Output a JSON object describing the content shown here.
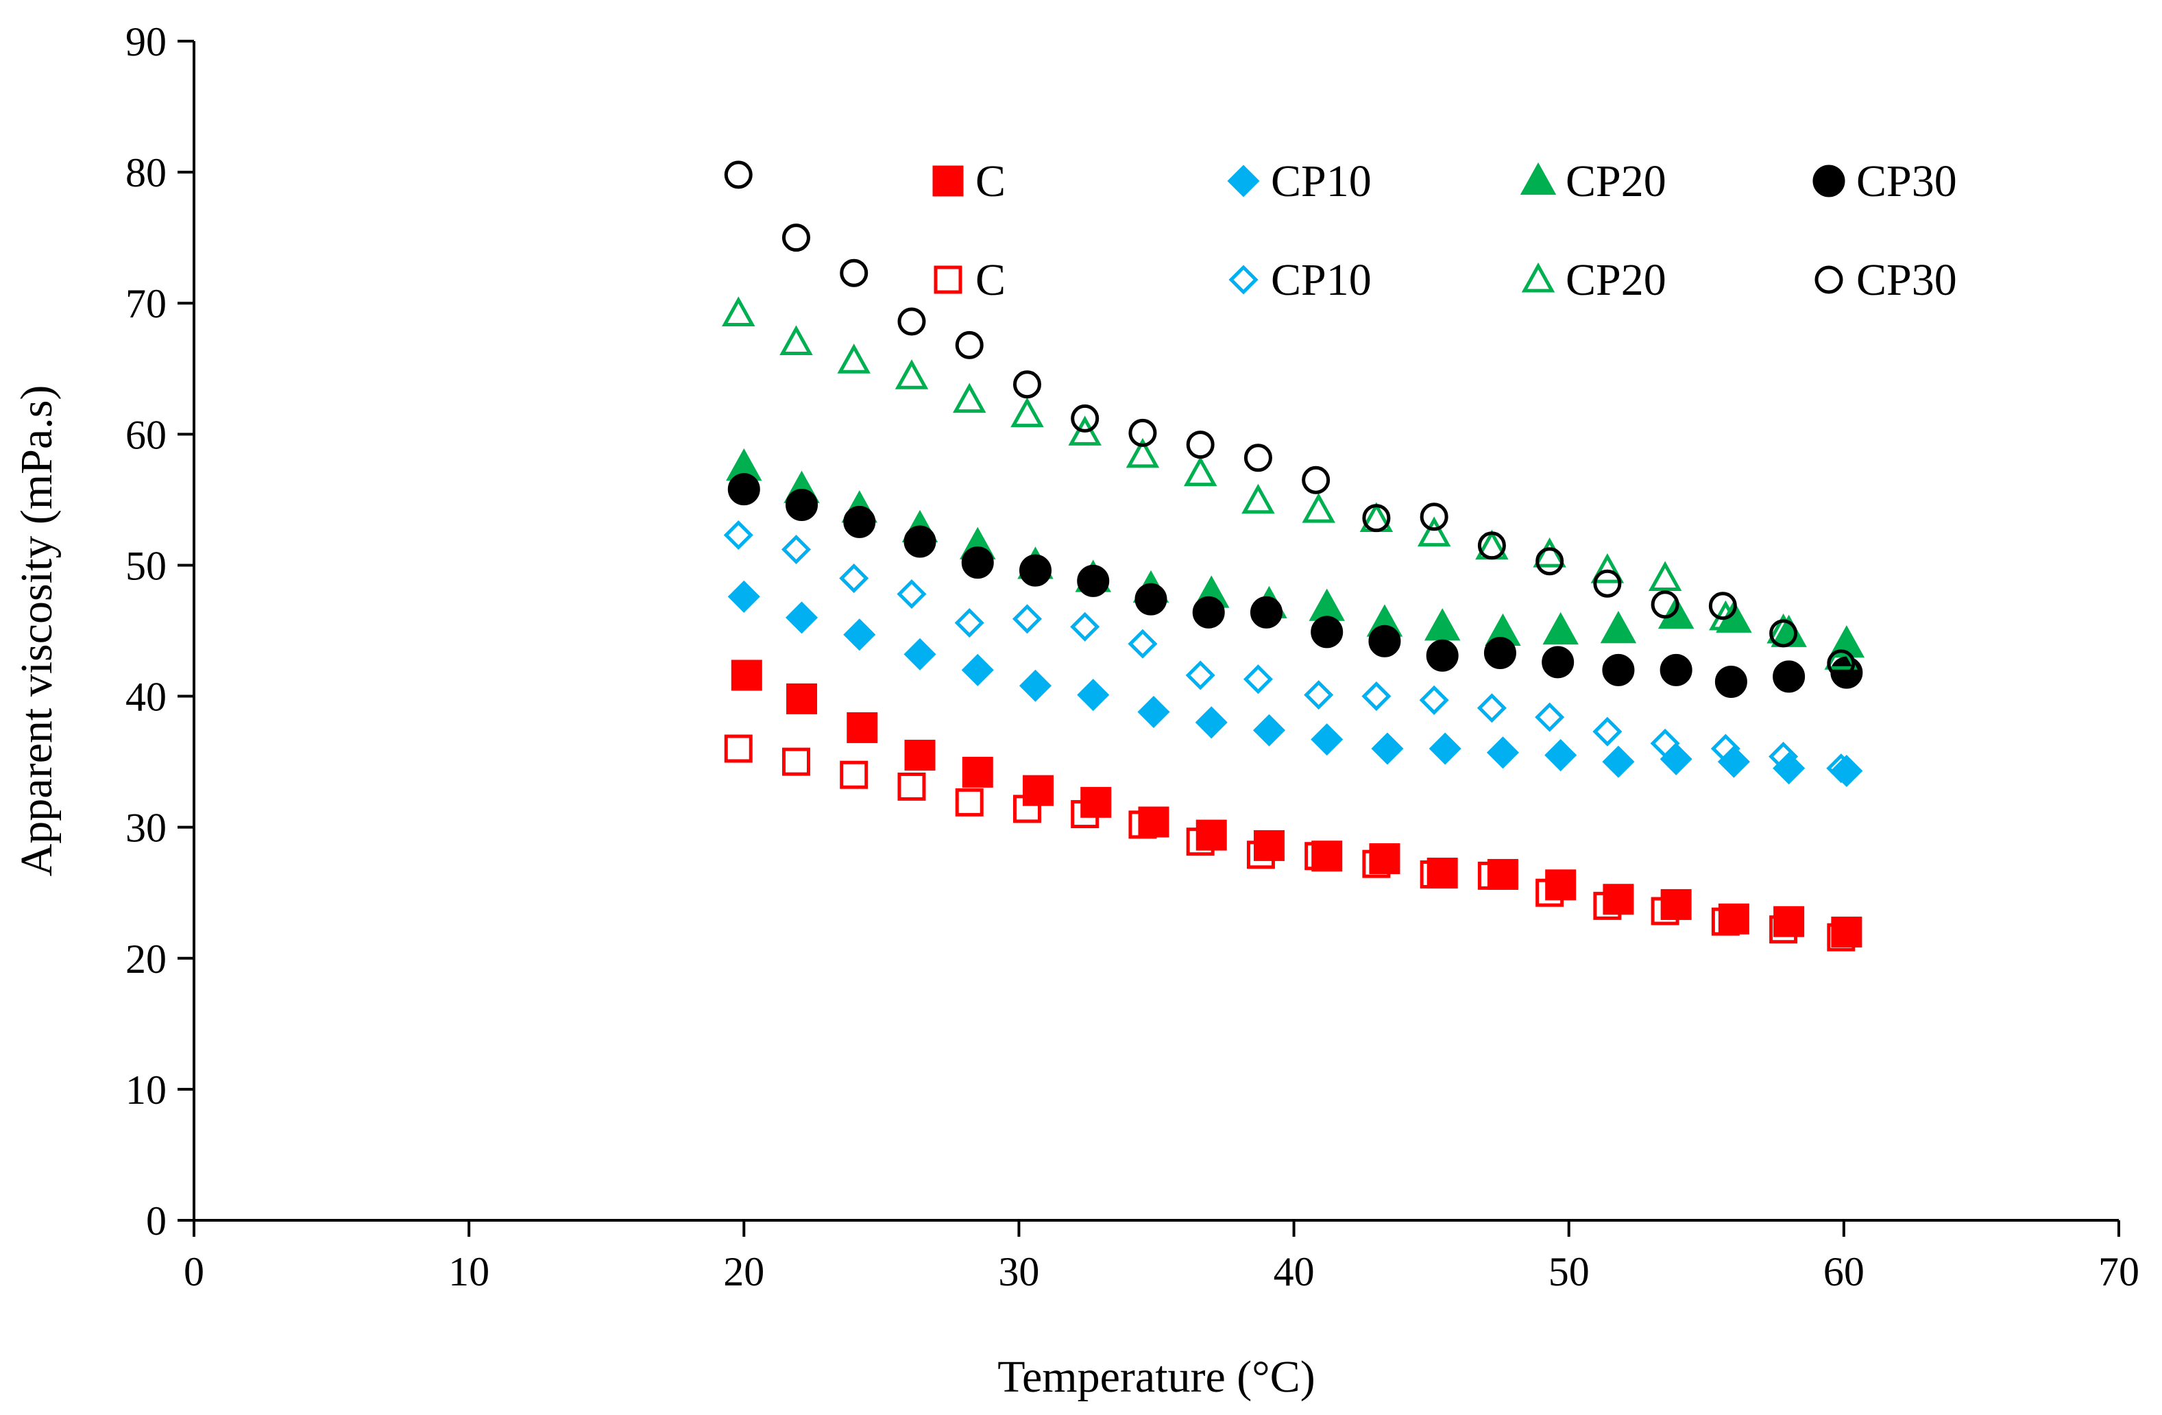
{
  "chart_data": {
    "type": "scatter",
    "xlabel": "Temperature (°C)",
    "ylabel": "Apparent viscosity  (mPa.s)",
    "xlim": [
      0,
      70
    ],
    "ylim": [
      0,
      90
    ],
    "xticks": [
      0,
      10,
      20,
      30,
      40,
      50,
      60,
      70
    ],
    "yticks": [
      0,
      10,
      20,
      30,
      40,
      50,
      60,
      70,
      80,
      90
    ],
    "grid": false,
    "legend": "top-right inside, two rows",
    "colors": {
      "C": "#ff0000",
      "CP10": "#00b0f0",
      "CP20": "#00b050",
      "CP30": "#000000"
    },
    "series": [
      {
        "name": "C",
        "marker": "square",
        "filled": true,
        "color": "#ff0000",
        "x": [
          20.1,
          22.1,
          24.3,
          26.4,
          28.5,
          30.7,
          32.8,
          34.9,
          37.0,
          39.1,
          41.2,
          43.3,
          45.4,
          47.6,
          49.7,
          51.8,
          53.9,
          56.0,
          58.0,
          60.1
        ],
        "y": [
          41.6,
          39.8,
          37.6,
          35.5,
          34.2,
          32.8,
          31.9,
          30.4,
          29.4,
          28.6,
          27.8,
          27.6,
          26.5,
          26.4,
          25.6,
          24.5,
          24.1,
          23.0,
          22.8,
          22.0
        ]
      },
      {
        "name": "CP10",
        "marker": "diamond",
        "filled": true,
        "color": "#00b0f0",
        "x": [
          20.0,
          22.1,
          24.2,
          26.4,
          28.5,
          30.6,
          32.7,
          34.9,
          37.0,
          39.1,
          41.2,
          43.4,
          45.5,
          47.6,
          49.7,
          51.8,
          53.9,
          56.0,
          58.0,
          60.1
        ],
        "y": [
          47.6,
          46.0,
          44.7,
          43.2,
          42.0,
          40.8,
          40.1,
          38.8,
          38.0,
          37.4,
          36.7,
          36.0,
          36.0,
          35.7,
          35.5,
          35.0,
          35.2,
          35.0,
          34.5,
          34.3
        ]
      },
      {
        "name": "CP20",
        "marker": "triangle",
        "filled": true,
        "color": "#00b050",
        "x": [
          20.0,
          22.1,
          24.2,
          26.4,
          28.5,
          30.6,
          32.7,
          34.8,
          37.0,
          39.1,
          41.2,
          43.3,
          45.4,
          47.6,
          49.7,
          51.8,
          53.9,
          56.0,
          58.0,
          60.1
        ],
        "y": [
          57.5,
          55.8,
          54.3,
          52.8,
          51.5,
          50.0,
          49.0,
          48.2,
          47.8,
          47.0,
          46.8,
          45.6,
          45.3,
          44.9,
          45.0,
          45.1,
          46.2,
          45.9,
          44.8,
          44.0
        ]
      },
      {
        "name": "CP30",
        "marker": "circle",
        "filled": true,
        "color": "#000000",
        "x": [
          20.0,
          22.1,
          24.2,
          26.4,
          28.5,
          30.6,
          32.7,
          34.8,
          36.9,
          39.0,
          41.2,
          43.3,
          45.4,
          47.5,
          49.6,
          51.8,
          53.9,
          55.9,
          58.0,
          60.1
        ],
        "y": [
          55.8,
          54.6,
          53.3,
          51.8,
          50.2,
          49.6,
          48.8,
          47.4,
          46.4,
          46.4,
          44.9,
          44.2,
          43.1,
          43.3,
          42.6,
          42.0,
          42.0,
          41.1,
          41.5,
          41.8
        ]
      },
      {
        "name": "C",
        "marker": "square",
        "filled": false,
        "color": "#ff0000",
        "x": [
          19.8,
          21.9,
          24.0,
          26.1,
          28.2,
          30.3,
          32.4,
          34.5,
          36.6,
          38.8,
          40.9,
          43.0,
          45.1,
          47.2,
          49.3,
          51.4,
          53.5,
          55.7,
          57.8,
          59.9
        ],
        "y": [
          36.0,
          35.0,
          34.0,
          33.1,
          31.9,
          31.4,
          31.0,
          30.2,
          28.9,
          27.9,
          27.8,
          27.2,
          26.4,
          26.3,
          25.0,
          24.0,
          23.6,
          22.8,
          22.2,
          21.6
        ]
      },
      {
        "name": "CP10",
        "marker": "diamond",
        "filled": false,
        "color": "#00b0f0",
        "x": [
          19.8,
          21.9,
          24.0,
          26.1,
          28.2,
          30.3,
          32.4,
          34.5,
          36.6,
          38.7,
          40.9,
          43.0,
          45.1,
          47.2,
          49.3,
          51.4,
          53.5,
          55.7,
          57.8,
          59.9
        ],
        "y": [
          52.3,
          51.2,
          49.0,
          47.8,
          45.6,
          45.9,
          45.3,
          44.0,
          41.6,
          41.3,
          40.1,
          40.0,
          39.7,
          39.1,
          38.4,
          37.3,
          36.4,
          36.0,
          35.4,
          34.5
        ]
      },
      {
        "name": "CP20",
        "marker": "triangle",
        "filled": false,
        "color": "#00b050",
        "x": [
          19.8,
          21.9,
          24.0,
          26.1,
          28.2,
          30.3,
          32.4,
          34.5,
          36.6,
          38.7,
          40.9,
          43.0,
          45.1,
          47.2,
          49.3,
          51.4,
          53.5,
          55.7,
          57.8,
          59.9
        ],
        "y": [
          69.2,
          67.0,
          65.6,
          64.4,
          62.6,
          61.5,
          60.1,
          58.4,
          57.0,
          54.9,
          54.2,
          53.5,
          52.4,
          51.4,
          50.8,
          49.6,
          49.0,
          46.0,
          45.0,
          43.0
        ]
      },
      {
        "name": "CP30",
        "marker": "circle",
        "filled": false,
        "color": "#000000",
        "x": [
          19.8,
          21.9,
          24.0,
          26.1,
          28.2,
          30.3,
          32.4,
          34.5,
          36.6,
          38.7,
          40.8,
          43.0,
          45.1,
          47.2,
          49.3,
          51.4,
          53.5,
          55.6,
          57.8,
          59.9
        ],
        "y": [
          79.8,
          75.0,
          72.3,
          68.6,
          66.8,
          63.8,
          61.2,
          60.1,
          59.2,
          58.2,
          56.5,
          53.6,
          53.7,
          51.5,
          50.3,
          48.6,
          47.0,
          46.9,
          44.8,
          42.5
        ]
      }
    ]
  }
}
